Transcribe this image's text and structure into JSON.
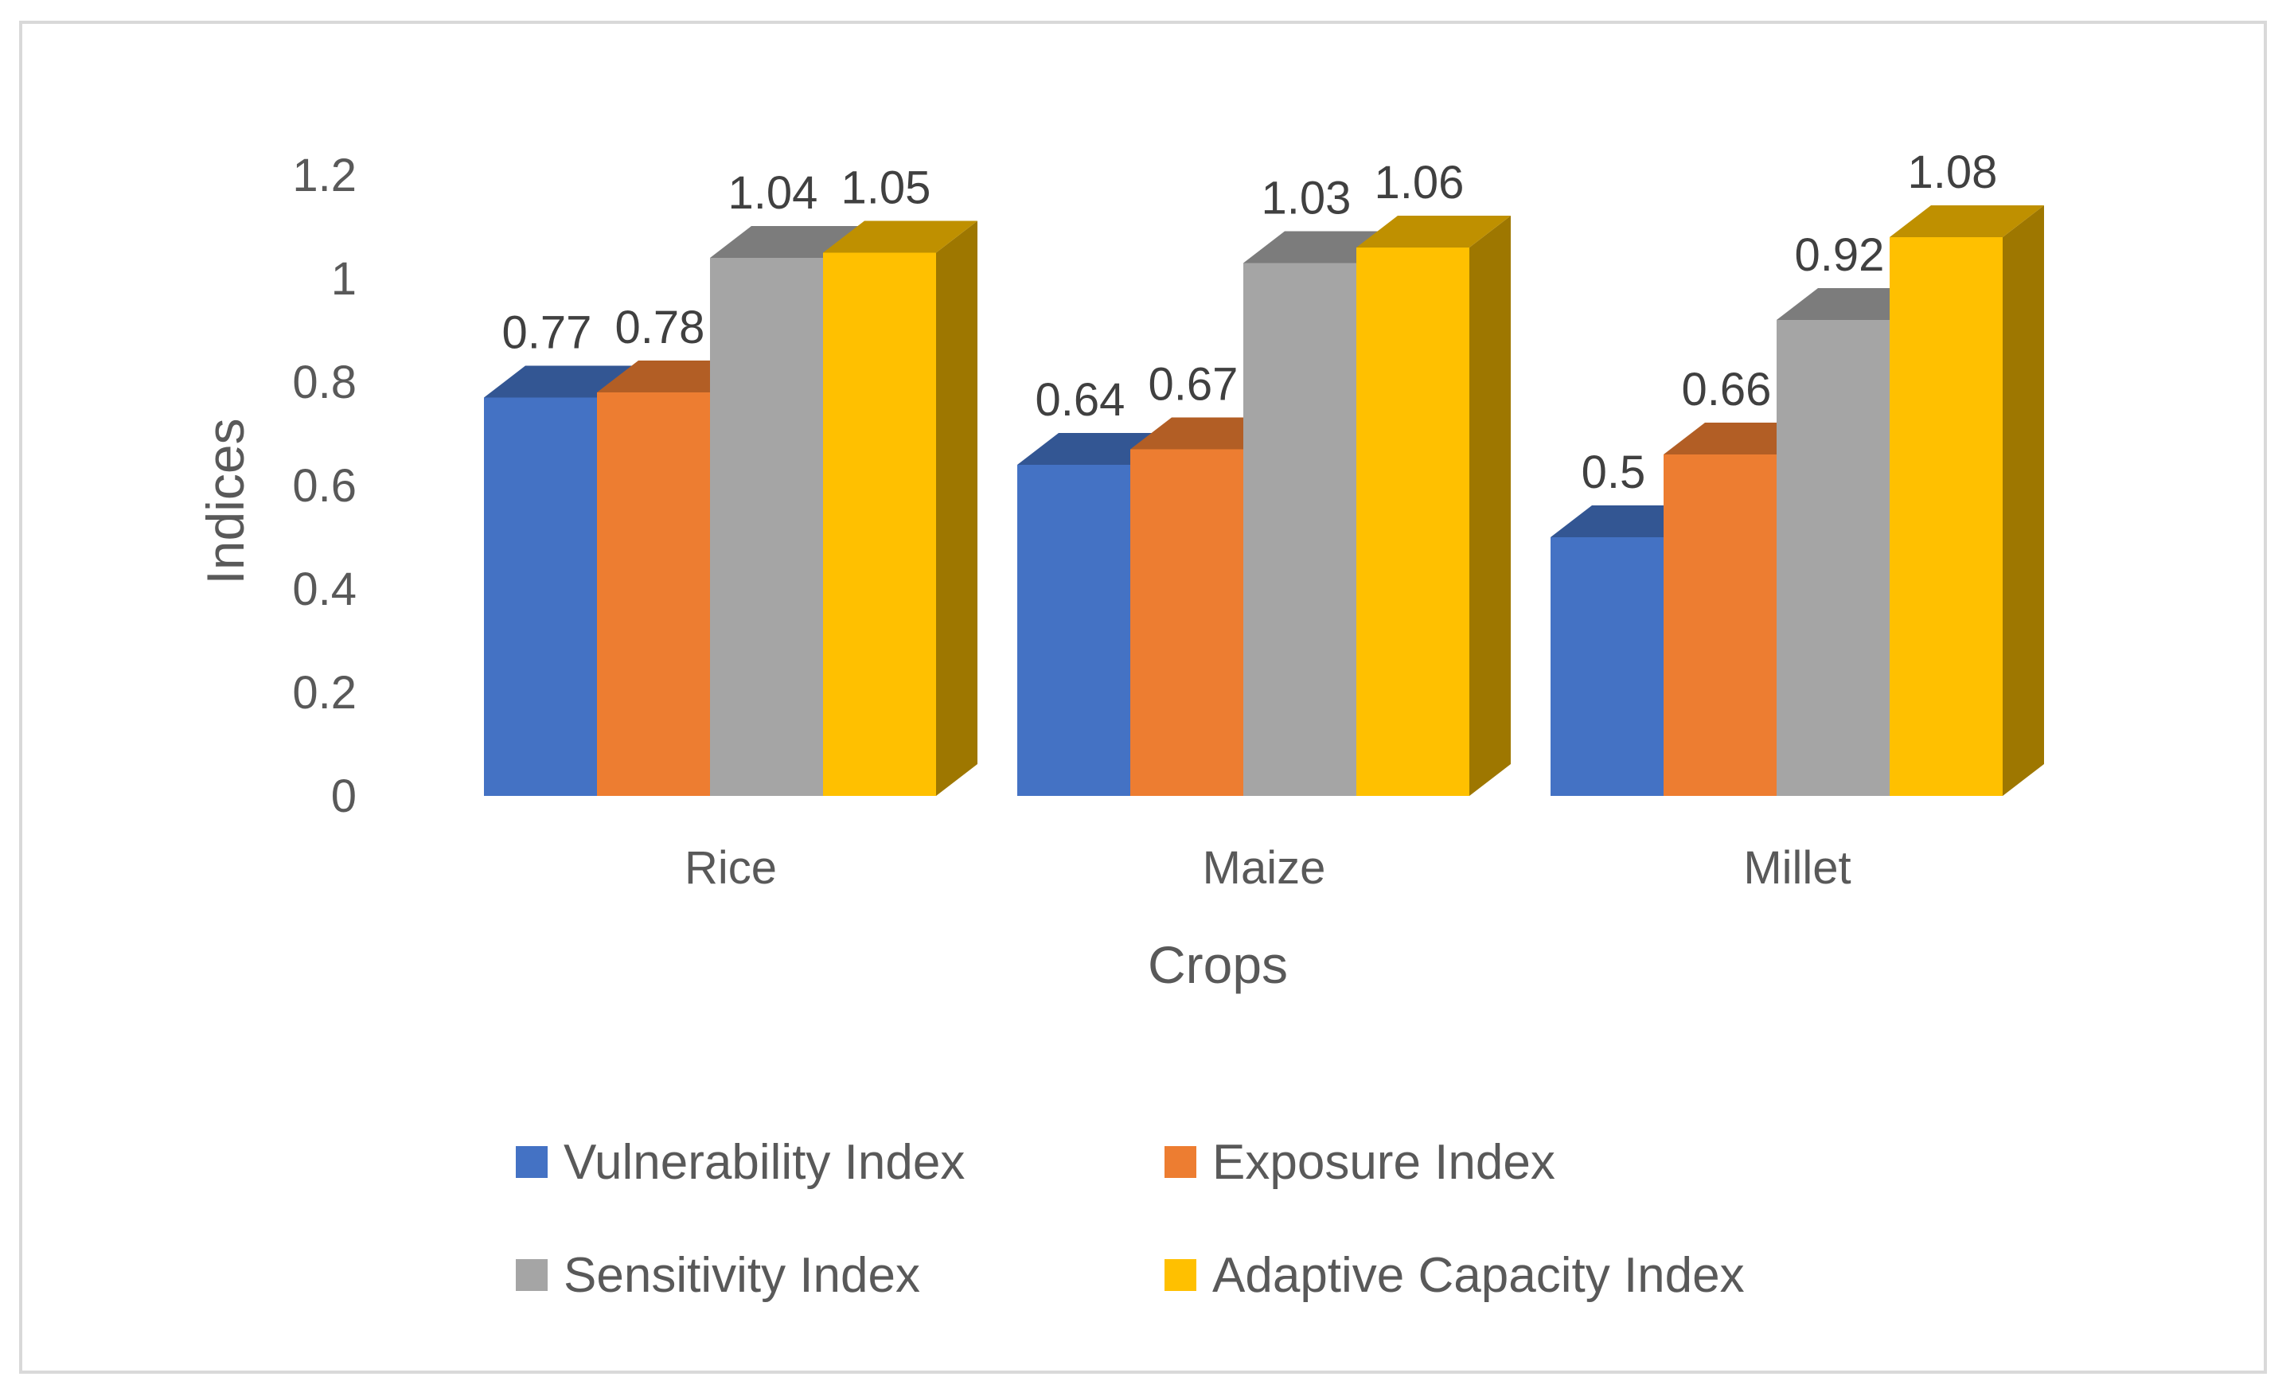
{
  "chart_data": {
    "type": "bar",
    "style": "3d-clustered-column",
    "categories": [
      "Rice",
      "Maize",
      "Millet"
    ],
    "series": [
      {
        "name": "Vulnerability Index",
        "values": [
          0.77,
          0.64,
          0.5
        ],
        "color": "#4472c4"
      },
      {
        "name": "Exposure Index",
        "values": [
          0.78,
          0.67,
          0.66
        ],
        "color": "#ed7d31"
      },
      {
        "name": "Sensitivity Index",
        "values": [
          1.04,
          1.03,
          0.92
        ],
        "color": "#a5a5a5"
      },
      {
        "name": "Adaptive Capacity Index",
        "values": [
          1.05,
          1.06,
          1.08
        ],
        "color": "#ffc000"
      }
    ],
    "title": "",
    "xlabel": "Crops",
    "ylabel": "Indices",
    "ylim": [
      0,
      1.2
    ],
    "yticks": [
      "0",
      "0.2",
      "0.4",
      "0.6",
      "0.8",
      "1",
      "1.2"
    ],
    "grid": false,
    "legend": "bottom"
  }
}
